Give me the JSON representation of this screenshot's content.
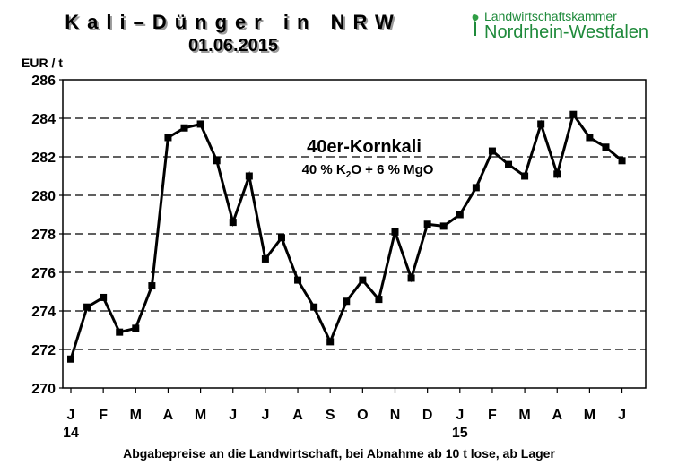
{
  "header": {
    "title_line1": "Kali–Dünger in NRW",
    "title_line2": "01.06.2015"
  },
  "logo": {
    "line1": "Landwirtschaftskammer",
    "line2": "Nordrhein-Westfalen",
    "icon": "leaf-icon",
    "color": "#1f8a3b"
  },
  "footer": "Abgabepreise an die Landwirtschaft, bei Abnahme ab 10 t lose, ab Lager",
  "chart_data": {
    "type": "line",
    "ylabel": "EUR / t",
    "ylim": [
      270,
      286
    ],
    "yticks": [
      270,
      272,
      274,
      276,
      278,
      280,
      282,
      284,
      286
    ],
    "ytick_labels": [
      "270",
      "272",
      "274",
      "276",
      "278",
      "280",
      "282",
      "284",
      "286"
    ],
    "grid": "horizontal dashed",
    "annotation": {
      "title": "40er-Kornkali",
      "subtitle_a": "40 % K",
      "subtitle_sub": "2",
      "subtitle_b": "O + 6 % MgO"
    },
    "month_labels": [
      "J",
      "F",
      "M",
      "A",
      "M",
      "J",
      "J",
      "A",
      "S",
      "O",
      "N",
      "D",
      "J",
      "F",
      "M",
      "A",
      "M",
      "J"
    ],
    "year_labels": [
      {
        "label": "14",
        "month_index": 0
      },
      {
        "label": "15",
        "month_index": 12
      }
    ],
    "series": [
      {
        "name": "40er-Kornkali",
        "color": "#000000",
        "x": [
          0,
          0.5,
          1,
          1.5,
          2,
          2.5,
          3,
          3.5,
          4,
          4.5,
          5,
          5.5,
          6,
          6.5,
          7,
          7.5,
          8,
          8.5,
          9,
          9.5,
          10,
          10.5,
          11,
          11.5,
          12,
          12.5,
          13,
          13.5,
          14,
          14.5,
          15,
          15.5,
          16,
          16.5,
          17
        ],
        "values": [
          271.5,
          274.2,
          274.7,
          272.9,
          273.1,
          275.3,
          283.0,
          283.5,
          283.7,
          281.8,
          278.6,
          281.0,
          276.7,
          277.8,
          275.6,
          274.2,
          272.4,
          274.5,
          275.6,
          274.6,
          278.1,
          275.7,
          278.5,
          278.4,
          279.0,
          280.4,
          282.3,
          281.6,
          281.0,
          283.7,
          281.1,
          284.2,
          283.0,
          282.5,
          281.8
        ]
      }
    ]
  }
}
